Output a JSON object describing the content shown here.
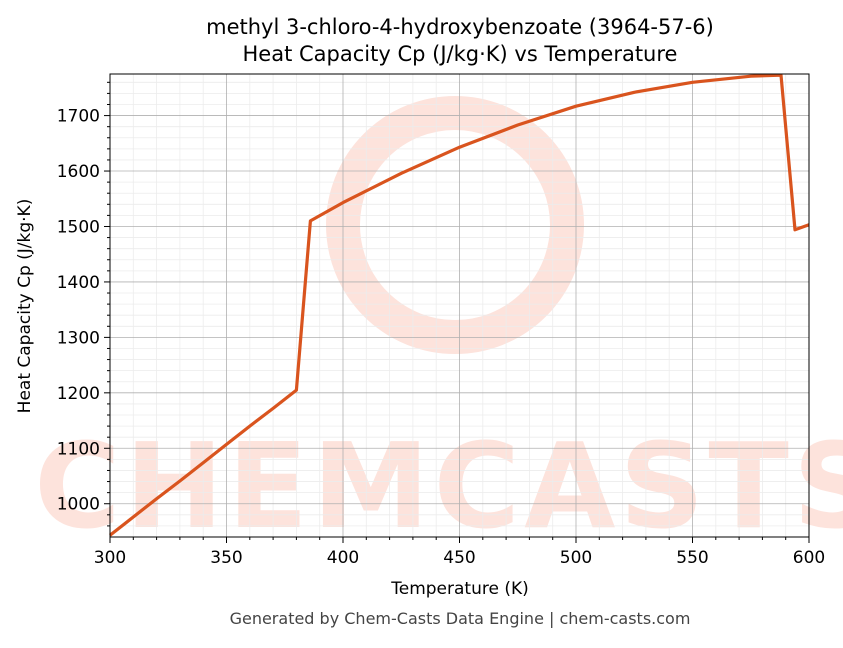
{
  "watermark": {
    "text": "CHEMCASTS",
    "color": "#fde3dc"
  },
  "footer": "Generated by Chem-Casts Data Engine | chem-casts.com",
  "chart_data": {
    "type": "line",
    "title_line1": "methyl 3-chloro-4-hydroxybenzoate (3964-57-6)",
    "title_line2": "Heat Capacity Cp (J/kg·K) vs Temperature",
    "xlabel": "Temperature (K)",
    "ylabel": "Heat Capacity Cp (J/kg·K)",
    "xlim": [
      300,
      600
    ],
    "ylim": [
      940,
      1775
    ],
    "xticks": [
      300,
      350,
      400,
      450,
      500,
      550,
      600
    ],
    "yticks": [
      1000,
      1100,
      1200,
      1300,
      1400,
      1500,
      1600,
      1700
    ],
    "grid": true,
    "line_color": "#d9541e",
    "series": [
      {
        "x": [
          300,
          310,
          320,
          330,
          340,
          350,
          360,
          370,
          380,
          386,
          400,
          425,
          450,
          475,
          500,
          525,
          550,
          575,
          588,
          594,
          600
        ],
        "y": [
          943,
          976,
          1009,
          1041,
          1074,
          1107,
          1140,
          1172,
          1205,
          1510,
          1543,
          1596,
          1643,
          1683,
          1717,
          1742,
          1760,
          1771,
          1773,
          1494,
          1503
        ]
      }
    ]
  }
}
